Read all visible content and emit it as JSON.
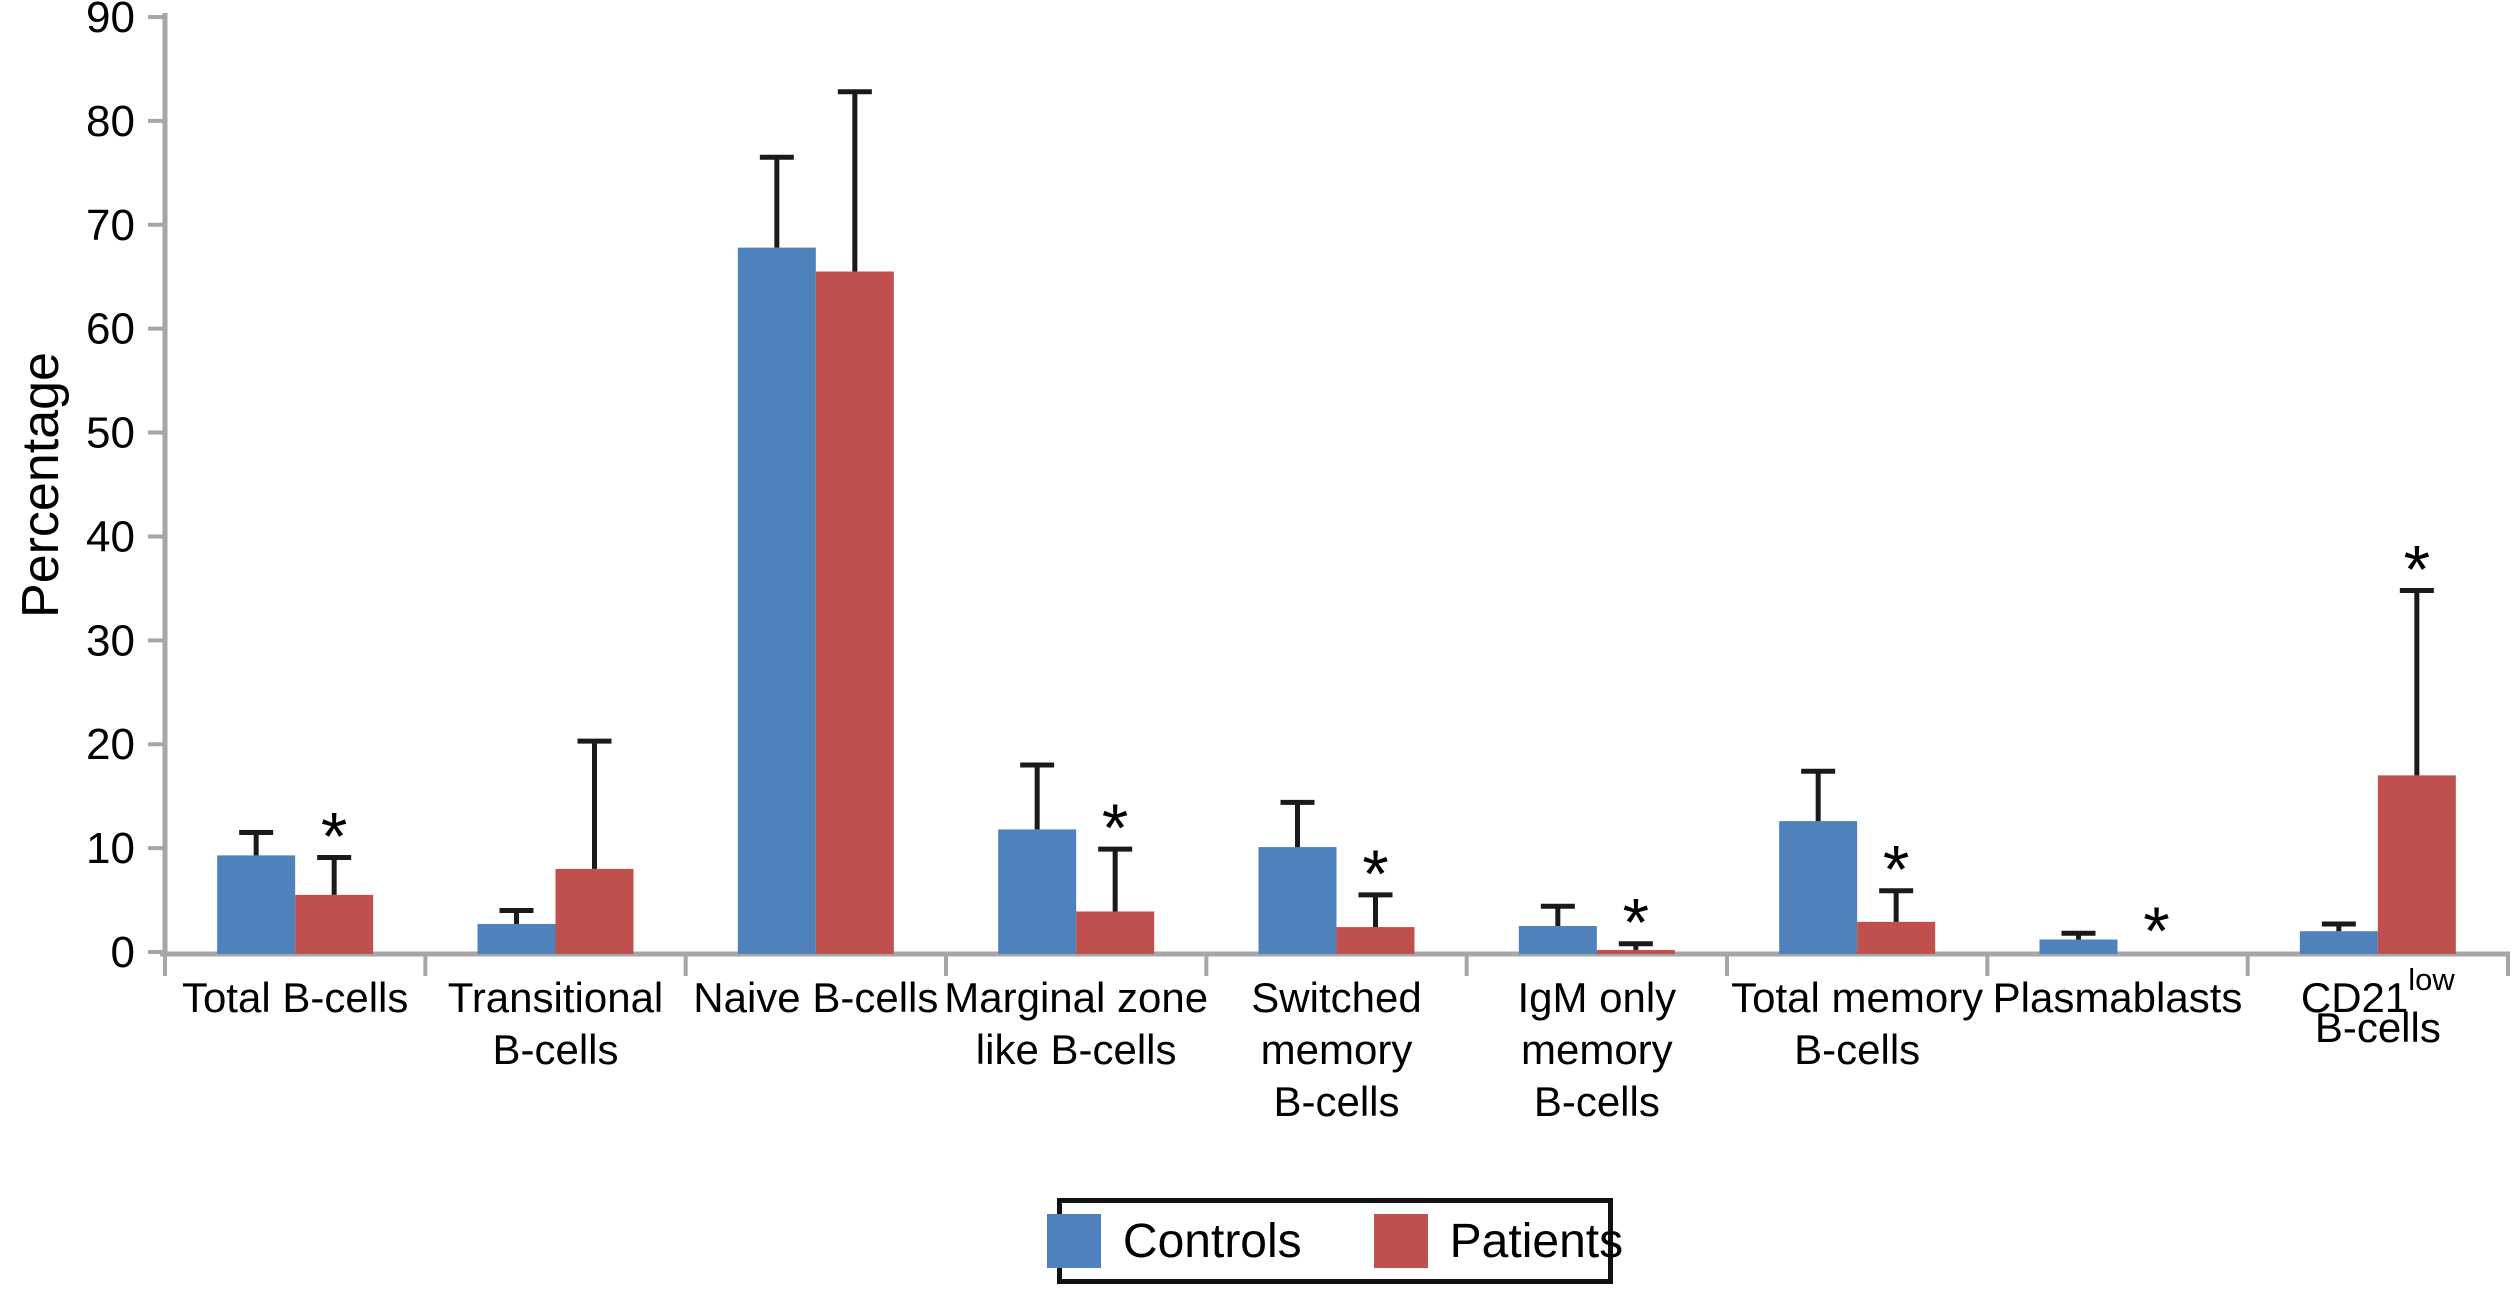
{
  "figure": {
    "background": "#ffffff"
  },
  "chart_data": {
    "type": "bar",
    "title": "",
    "xlabel": "",
    "ylabel": "Percentage",
    "ylim": [
      0,
      90
    ],
    "ytick_step": 10,
    "grid": false,
    "legend_position": "bottom-center",
    "axis_color": "#a6a6a6",
    "error_bar_color": "#1a1a1a",
    "significance_marker": "*",
    "categories": [
      {
        "lines": [
          "Total B-cells"
        ]
      },
      {
        "lines": [
          "Transitional",
          "B-cells"
        ]
      },
      {
        "lines": [
          "Naive B-cells"
        ]
      },
      {
        "lines": [
          "Marginal zone",
          "like B-cells"
        ]
      },
      {
        "lines": [
          "Switched",
          "memory",
          "B-cells"
        ]
      },
      {
        "lines": [
          "IgM only",
          "memory",
          "B-cells"
        ]
      },
      {
        "lines": [
          "Total memory",
          "B-cells"
        ]
      },
      {
        "lines": [
          "Plasmablasts"
        ]
      },
      {
        "lines": [
          "CD21",
          "B-cells"
        ],
        "superscript": "low"
      }
    ],
    "series": [
      {
        "name": "Controls",
        "color": "#4f81bd",
        "values": [
          9.3,
          2.7,
          67.8,
          11.8,
          10.1,
          2.5,
          12.6,
          1.2,
          2.0
        ],
        "error_up": [
          2.2,
          1.3,
          8.7,
          6.2,
          4.3,
          1.9,
          4.8,
          0.6,
          0.7
        ]
      },
      {
        "name": "Patients",
        "color": "#c0504d",
        "values": [
          5.5,
          8.0,
          65.5,
          3.9,
          2.4,
          0.2,
          2.9,
          0.0,
          17.0
        ],
        "error_up": [
          3.6,
          12.3,
          17.3,
          6.0,
          3.1,
          0.6,
          3.0,
          0.0,
          17.8
        ],
        "significant": [
          true,
          false,
          false,
          true,
          true,
          true,
          true,
          true,
          true
        ]
      }
    ]
  }
}
